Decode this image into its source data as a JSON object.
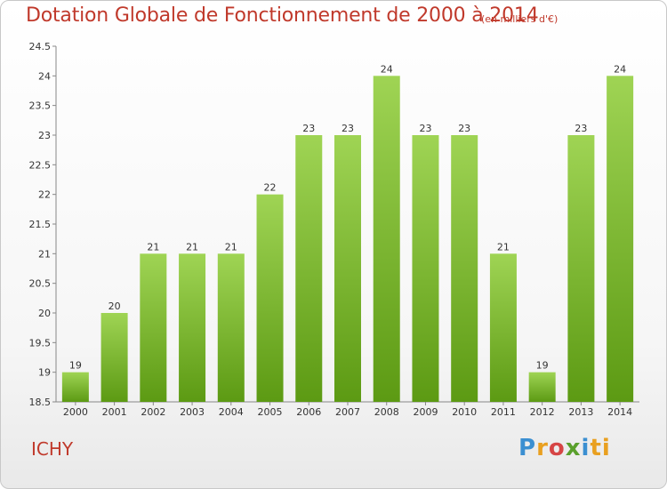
{
  "header": {
    "title": "Dotation Globale de Fonctionnement de 2000 à 2014",
    "subtitle": "(en milliers d'€)"
  },
  "footer": {
    "place": "ICHY",
    "logo": [
      "P",
      "r",
      "o",
      "x",
      "i",
      "ti"
    ]
  },
  "colors": {
    "bar_top": "#9fd454",
    "bar_bottom": "#5c9a13",
    "title": "#c0392b"
  },
  "chart_data": {
    "type": "bar",
    "title": "Dotation Globale de Fonctionnement de 2000 à 2014",
    "xlabel": "",
    "ylabel": "",
    "ylim": [
      18.5,
      24.5
    ],
    "yticks": [
      18.5,
      19,
      19.5,
      20,
      20.5,
      21,
      21.5,
      22,
      22.5,
      23,
      23.5,
      24,
      24.5
    ],
    "grid": false,
    "categories": [
      "2000",
      "2001",
      "2002",
      "2003",
      "2004",
      "2005",
      "2006",
      "2007",
      "2008",
      "2009",
      "2010",
      "2011",
      "2012",
      "2013",
      "2014"
    ],
    "values": [
      19,
      20,
      21,
      21,
      21,
      22,
      23,
      23,
      24,
      23,
      23,
      21,
      19,
      23,
      24
    ],
    "labels": [
      "19",
      "20",
      "21",
      "21",
      "21",
      "22",
      "23",
      "23",
      "24",
      "23",
      "23",
      "21",
      "19",
      "23",
      "24"
    ]
  }
}
